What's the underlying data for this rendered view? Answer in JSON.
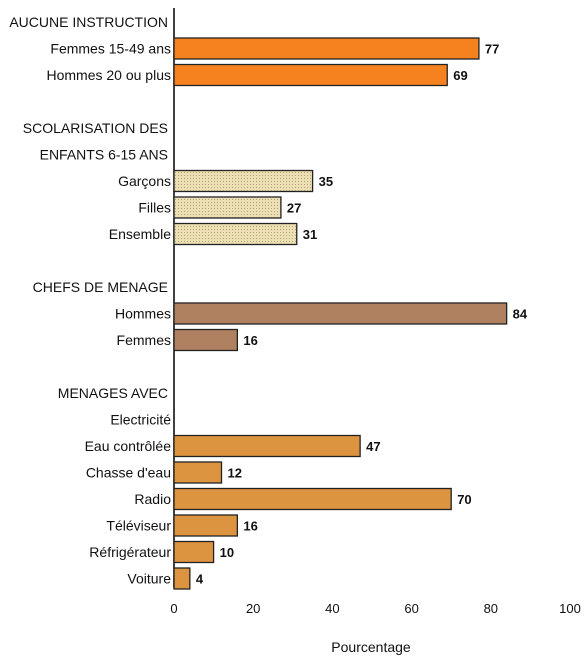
{
  "chart_data": {
    "type": "bar",
    "orientation": "horizontal",
    "xlabel": "Pourcentage",
    "xlim": [
      0,
      100
    ],
    "xticks": [
      0,
      20,
      40,
      60,
      80,
      100
    ],
    "grid": false,
    "groups": [
      {
        "title": [
          "AUCUNE INSTRUCTION"
        ],
        "color": "#f5821f",
        "bars": [
          {
            "label": "Femmes 15-49 ans",
            "value": 77
          },
          {
            "label": "Hommes 20 ou plus",
            "value": 69
          }
        ]
      },
      {
        "title": [
          "SCOLARISATION DES",
          "ENFANTS 6-15 ANS"
        ],
        "color": "#ece0b4",
        "bars": [
          {
            "label": "Garçons",
            "value": 35
          },
          {
            "label": "Filles",
            "value": 27
          },
          {
            "label": "Ensemble",
            "value": 31
          }
        ]
      },
      {
        "title": [
          "CHEFS DE MENAGE"
        ],
        "color": "#b08160",
        "bars": [
          {
            "label": "Hommes",
            "value": 84
          },
          {
            "label": "Femmes",
            "value": 16
          }
        ]
      },
      {
        "title": [
          "MENAGES AVEC"
        ],
        "color": "#dd9440",
        "bars": [
          {
            "label": "Electricité",
            "value": null
          },
          {
            "label": "Eau contrôlée",
            "value": 47
          },
          {
            "label": "Chasse d'eau",
            "value": 12
          },
          {
            "label": "Radio",
            "value": 70
          },
          {
            "label": "Téléviseur",
            "value": 16
          },
          {
            "label": "Réfrigérateur",
            "value": 10
          },
          {
            "label": "Voiture",
            "value": 4
          }
        ]
      }
    ]
  }
}
